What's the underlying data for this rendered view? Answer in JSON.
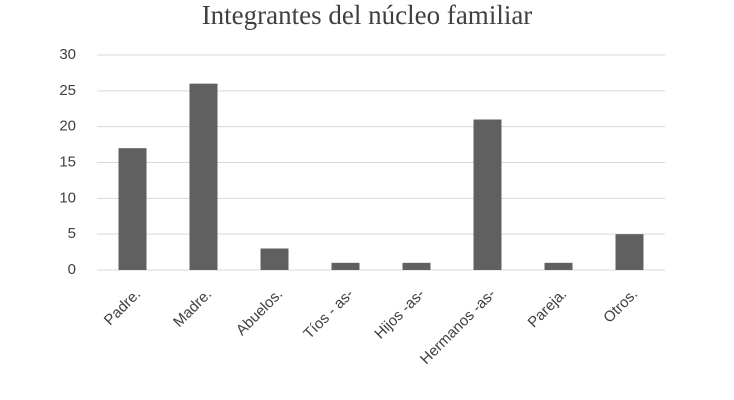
{
  "chart_data": {
    "type": "bar",
    "title": "Integrantes del núcleo familiar",
    "categories": [
      "Padre.",
      "Madre.",
      "Abuelos.",
      "Tíos - as-",
      "Hijos -as-",
      "Hermanos -as-",
      "Pareja.",
      "Otros."
    ],
    "values": [
      17,
      26,
      3,
      1,
      1,
      21,
      1,
      5
    ],
    "color": "#606060",
    "ylim": [
      0,
      30
    ],
    "yticks": [
      0,
      5,
      10,
      15,
      20,
      25,
      30
    ],
    "grid": true
  }
}
